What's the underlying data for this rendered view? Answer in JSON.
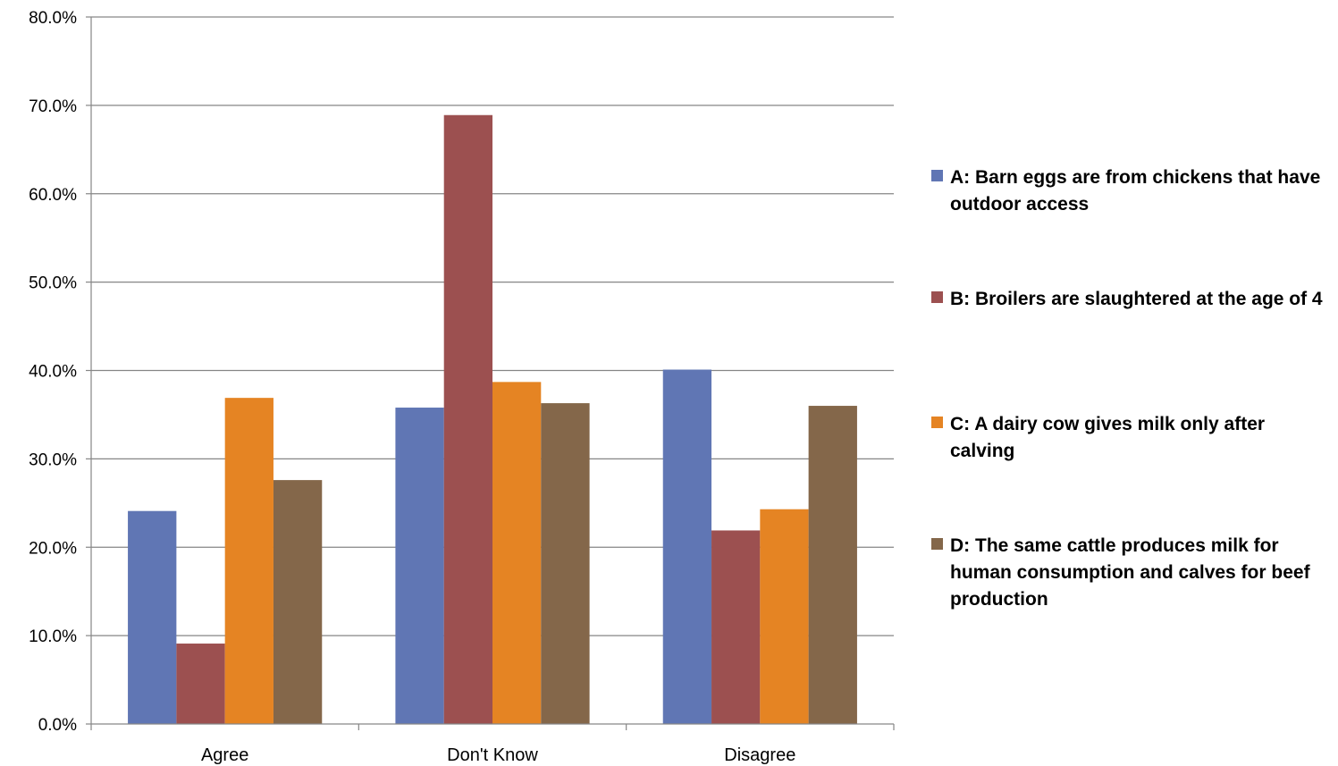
{
  "chart_data": {
    "type": "bar",
    "categories": [
      "Agree",
      "Don't Know",
      "Disagree"
    ],
    "series": [
      {
        "name": "A: Barn eggs are from chickens that have outdoor access",
        "color": "#6076b4",
        "values": [
          24.1,
          35.8,
          40.1
        ]
      },
      {
        "name": "B: Broilers are slaughtered at the age of 4",
        "color": "#9c5050",
        "values": [
          9.1,
          68.9,
          21.9
        ]
      },
      {
        "name": "C: A dairy cow gives milk only after calving",
        "color": "#e58423",
        "values": [
          36.9,
          38.7,
          24.3
        ]
      },
      {
        "name": "D: The same cattle produces milk for human consumption and calves for beef production",
        "color": "#84674a",
        "values": [
          27.6,
          36.3,
          36.0
        ]
      }
    ],
    "y_ticks": [
      "0.0%",
      "10.0%",
      "20.0%",
      "30.0%",
      "40.0%",
      "50.0%",
      "60.0%",
      "70.0%",
      "80.0%"
    ],
    "ylim": [
      0,
      80
    ],
    "grid": true,
    "legend_position": "right",
    "title": "",
    "xlabel": "",
    "ylabel": ""
  }
}
